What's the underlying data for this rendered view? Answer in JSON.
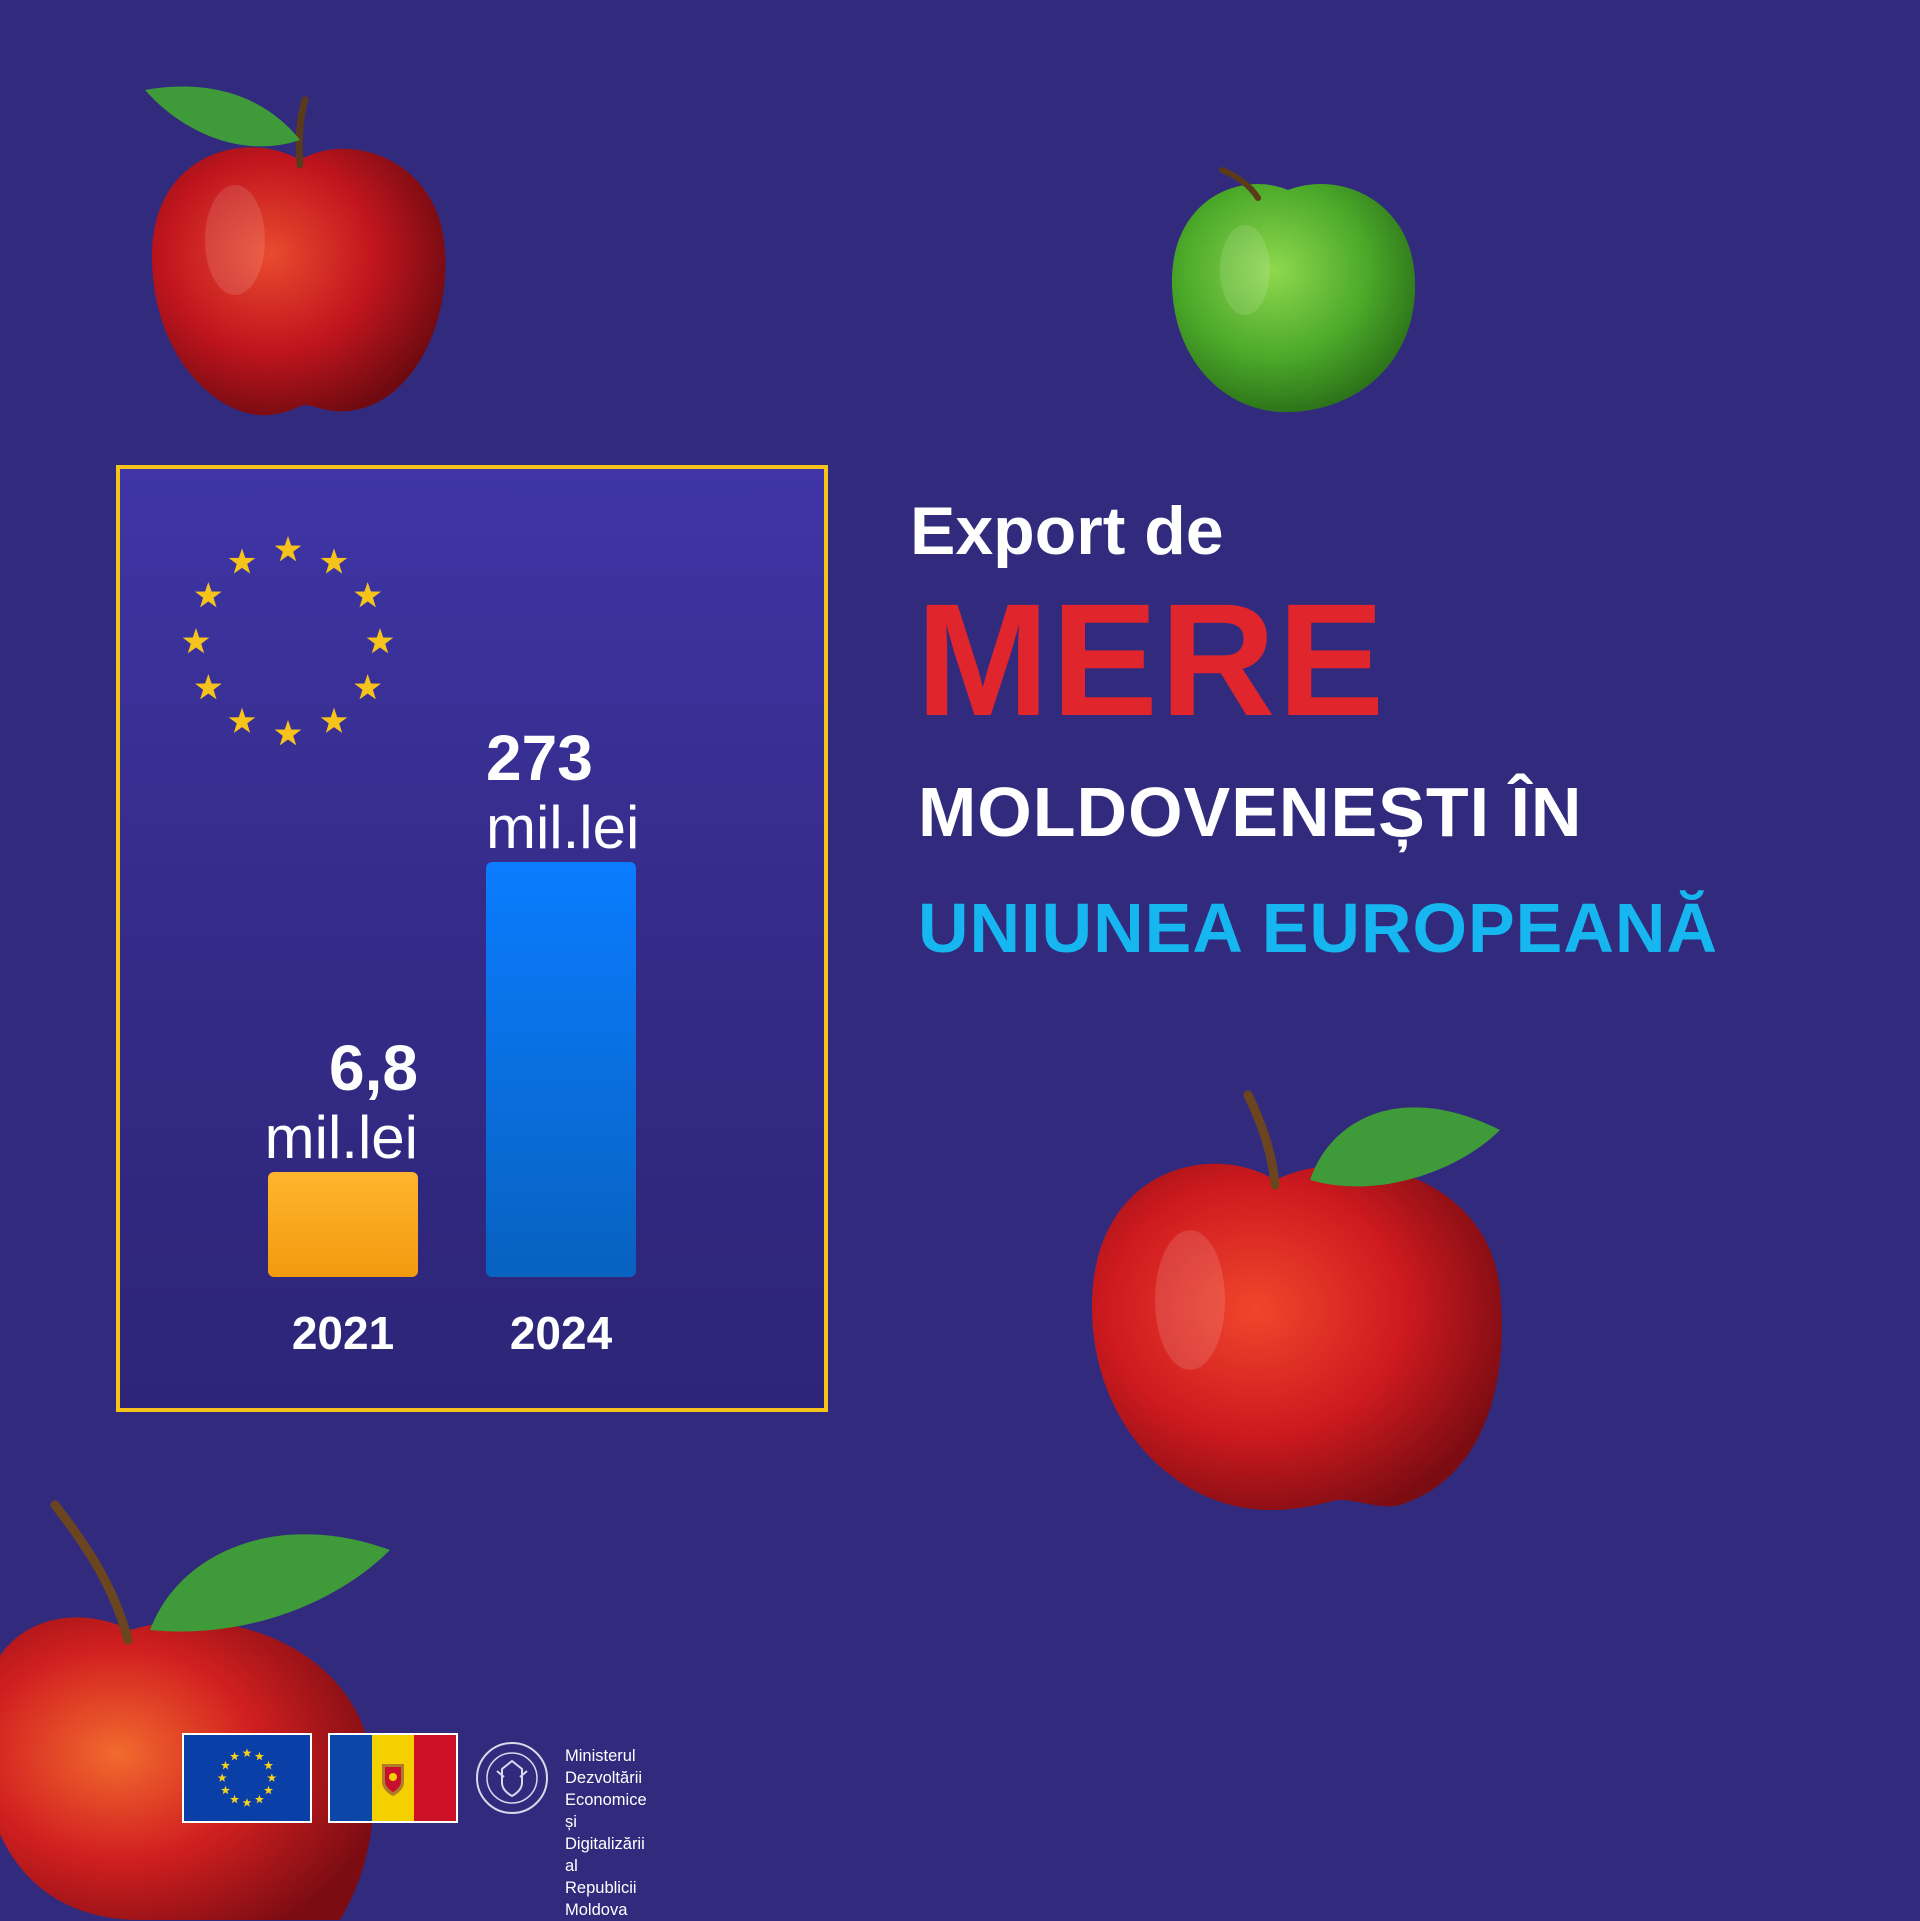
{
  "headline": {
    "line1": "Export de",
    "line2": "MERE",
    "line3": "MOLDOVENEȘTI ÎN",
    "line4": "UNIUNEA EUROPEANĂ"
  },
  "colors": {
    "background": "#322b7d",
    "panel_border": "#f6c31c",
    "bar_2021": "#f6a51a",
    "bar_2024": "#0a78f0",
    "mere": "#e0252c",
    "uniunea": "#16b7f0"
  },
  "chart_data": {
    "type": "bar",
    "categories": [
      "2021",
      "2024"
    ],
    "values": [
      6.8,
      273
    ],
    "unit": "mil.lei",
    "value_labels": [
      "6,8",
      "273"
    ],
    "title": "",
    "xlabel": "",
    "ylabel": "",
    "grid": false,
    "legend": "none"
  },
  "footer": {
    "ministry_lines": [
      "Ministerul Dezvoltării",
      "Economice și Digitalizării",
      "al Republicii Moldova"
    ]
  },
  "icons": {
    "panel_emblem": "eu-stars-icon",
    "footer_flags": [
      "eu-flag-icon",
      "moldova-flag-icon"
    ],
    "footer_seal": "government-seal-icon"
  }
}
